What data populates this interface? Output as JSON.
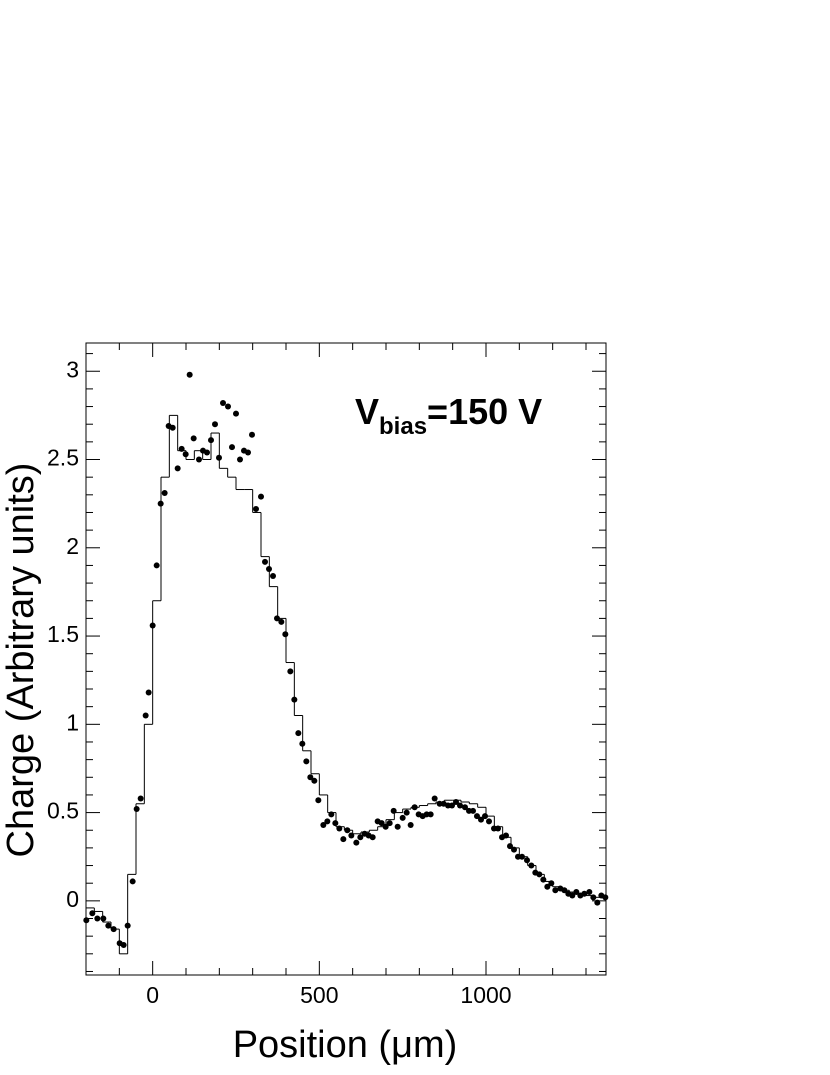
{
  "chart_data": {
    "type": "scatter",
    "xlabel": "Position (μm)",
    "ylabel": "Charge (Arbitrary units)",
    "annotation": [
      "V",
      "bias",
      "=150 V"
    ],
    "xlim": [
      -200,
      1360
    ],
    "ylim": [
      -0.42,
      3.16
    ],
    "xticks": [
      0,
      500,
      1000
    ],
    "yticks": [
      0,
      0.5,
      1,
      1.5,
      2,
      2.5,
      3
    ],
    "xminorticks": [
      -200,
      -100,
      100,
      200,
      300,
      400,
      600,
      700,
      800,
      900,
      1100,
      1200,
      1300
    ],
    "yminorticks": [
      -0.4,
      -0.3,
      -0.2,
      -0.1,
      0.1,
      0.2,
      0.3,
      0.4,
      0.6,
      0.7,
      0.8,
      0.9,
      1.1,
      1.2,
      1.3,
      1.4,
      1.6,
      1.7,
      1.8,
      1.9,
      2.1,
      2.2,
      2.3,
      2.4,
      2.6,
      2.7,
      2.8,
      2.9,
      3.1
    ],
    "series": [
      {
        "type": "scatter",
        "color": "#000000",
        "x": [
          -199,
          -181,
          -166,
          -148,
          -133,
          -117,
          -99,
          -87,
          -75,
          -60,
          -48,
          -36,
          -21,
          -12,
          0,
          12,
          24,
          36,
          48,
          60,
          75,
          87,
          99,
          111,
          123,
          139,
          151,
          163,
          175,
          187,
          199,
          211,
          226,
          238,
          250,
          262,
          274,
          286,
          298,
          310,
          325,
          337,
          349,
          361,
          373,
          386,
          398,
          413,
          425,
          437,
          449,
          461,
          473,
          485,
          497,
          512,
          524,
          536,
          548,
          560,
          572,
          584,
          596,
          611,
          623,
          636,
          648,
          660,
          675,
          687,
          699,
          711,
          723,
          735,
          750,
          762,
          774,
          786,
          798,
          810,
          822,
          834,
          846,
          861,
          873,
          886,
          898,
          910,
          922,
          937,
          949,
          961,
          973,
          985,
          997,
          1009,
          1024,
          1036,
          1048,
          1060,
          1072,
          1084,
          1096,
          1108,
          1123,
          1136,
          1148,
          1160,
          1172,
          1184,
          1196,
          1208,
          1223,
          1235,
          1247,
          1259,
          1271,
          1283,
          1295,
          1310,
          1322,
          1334,
          1346,
          1358
        ],
        "values": [
          -0.11,
          -0.07,
          -0.1,
          -0.1,
          -0.14,
          -0.16,
          -0.24,
          -0.25,
          -0.14,
          0.11,
          0.52,
          0.58,
          1.05,
          1.18,
          1.56,
          1.9,
          2.25,
          2.31,
          2.69,
          2.68,
          2.45,
          2.56,
          2.53,
          2.98,
          2.62,
          2.5,
          2.55,
          2.54,
          2.61,
          2.7,
          2.51,
          2.82,
          2.8,
          2.57,
          2.76,
          2.5,
          2.55,
          2.54,
          2.64,
          2.22,
          2.29,
          1.92,
          1.88,
          1.84,
          1.6,
          1.58,
          1.51,
          1.3,
          1.14,
          0.95,
          0.89,
          0.79,
          0.7,
          0.68,
          0.57,
          0.43,
          0.45,
          0.49,
          0.44,
          0.41,
          0.35,
          0.4,
          0.37,
          0.33,
          0.36,
          0.38,
          0.37,
          0.36,
          0.45,
          0.44,
          0.42,
          0.44,
          0.51,
          0.42,
          0.47,
          0.5,
          0.43,
          0.53,
          0.49,
          0.48,
          0.49,
          0.49,
          0.58,
          0.55,
          0.55,
          0.54,
          0.54,
          0.56,
          0.54,
          0.53,
          0.51,
          0.51,
          0.48,
          0.46,
          0.48,
          0.45,
          0.41,
          0.41,
          0.36,
          0.37,
          0.31,
          0.29,
          0.25,
          0.25,
          0.23,
          0.2,
          0.16,
          0.15,
          0.12,
          0.08,
          0.1,
          0.06,
          0.07,
          0.06,
          0.04,
          0.03,
          0.05,
          0.03,
          0.04,
          0.05,
          0.02,
          -0.01,
          0.03,
          0.02
        ]
      },
      {
        "type": "step",
        "color": "#000000",
        "bins": [
          -200,
          -175,
          -150,
          -125,
          -100,
          -75,
          -50,
          -25,
          0,
          25,
          50,
          75,
          100,
          125,
          150,
          175,
          200,
          225,
          250,
          275,
          300,
          325,
          350,
          375,
          400,
          425,
          450,
          475,
          500,
          525,
          550,
          575,
          600,
          625,
          650,
          675,
          700,
          725,
          750,
          775,
          800,
          825,
          850,
          875,
          900,
          925,
          950,
          975,
          1000,
          1025,
          1050,
          1075,
          1100,
          1125,
          1150,
          1175,
          1200,
          1225,
          1250,
          1275,
          1300,
          1325,
          1350
        ],
        "values": [
          -0.04,
          -0.06,
          -0.12,
          -0.16,
          -0.3,
          0.15,
          0.55,
          1.0,
          1.7,
          2.4,
          2.75,
          2.55,
          2.5,
          2.55,
          2.5,
          2.65,
          2.45,
          2.4,
          2.33,
          2.33,
          2.2,
          1.95,
          1.78,
          1.6,
          1.35,
          1.05,
          0.85,
          0.72,
          0.6,
          0.5,
          0.42,
          0.4,
          0.38,
          0.39,
          0.4,
          0.42,
          0.46,
          0.5,
          0.52,
          0.53,
          0.54,
          0.55,
          0.56,
          0.57,
          0.57,
          0.56,
          0.55,
          0.53,
          0.48,
          0.42,
          0.36,
          0.3,
          0.25,
          0.2,
          0.15,
          0.11,
          0.08,
          0.06,
          0.05,
          0.04,
          0.03,
          0.02
        ]
      }
    ]
  }
}
